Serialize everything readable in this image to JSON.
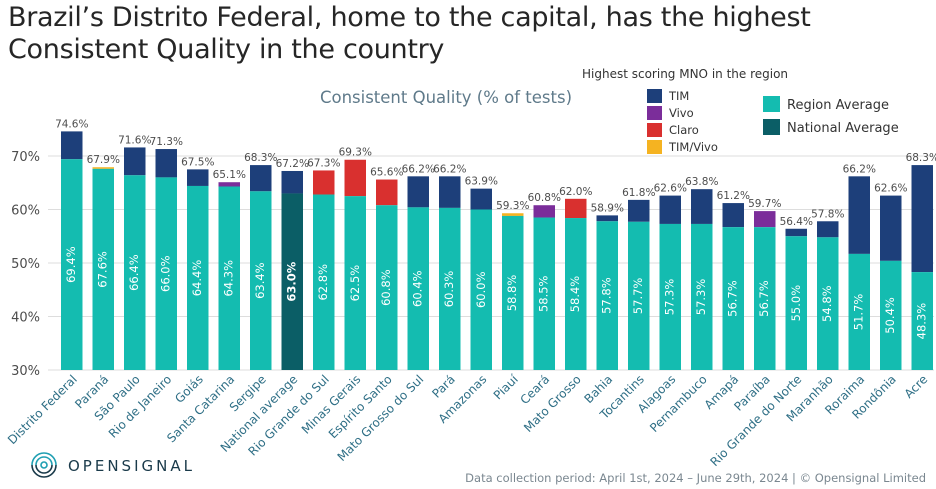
{
  "title_lines": [
    "Brazil’s Distrito Federal, home to the capital, has the highest",
    "Consistent Quality in the country"
  ],
  "logo_text": "OPENSIGNAL",
  "footer": "Data collection period: April 1st, 2024 – June 29th, 2024 | © Opensignal Limited",
  "colors": {
    "region_average": "#14bcb0",
    "national_average": "#0b5e66",
    "TIM": "#1d3f7a",
    "Vivo": "#7b2d9a",
    "Claro": "#d9302f",
    "TIM/Vivo": "#f5b321",
    "axis_text": "#4d4d4d",
    "bar_label": "#ffffff",
    "grid": "#dddddd"
  },
  "chart_data": {
    "type": "bar",
    "title": "Consistent Quality (% of tests)",
    "ylim": [
      30,
      76
    ],
    "yticks": [
      30,
      40,
      50,
      60,
      70
    ],
    "ytick_labels": [
      "30%",
      "40%",
      "50%",
      "60%",
      "70%"
    ],
    "legend_title": "Highest scoring MNO in the region",
    "legend_mno": [
      "TIM",
      "Vivo",
      "Claro",
      "TIM/Vivo"
    ],
    "legend_base": [
      "Region Average",
      "National Average"
    ],
    "categories": [
      "Distrito Federal",
      "Paraná",
      "São Paulo",
      "Rio de Janeiro",
      "Goiás",
      "Santa Catarina",
      "Sergipe",
      "National average",
      "Rio Grande do Sul",
      "Minas Gerais",
      "Espírito Santo",
      "Mato Grosso do Sul",
      "Pará",
      "Amazonas",
      "Piauí",
      "Ceará",
      "Mato Grosso",
      "Bahia",
      "Tocantins",
      "Alagoas",
      "Pernambuco",
      "Amapá",
      "Paraíba",
      "Rio Grande do Norte",
      "Maranhão",
      "Roraima",
      "Rondônia",
      "Acre"
    ],
    "series": [
      {
        "name": "Region Average",
        "values": [
          69.4,
          67.6,
          66.4,
          66.0,
          64.4,
          64.3,
          63.4,
          63.0,
          62.8,
          62.5,
          60.8,
          60.4,
          60.3,
          60.0,
          58.8,
          58.5,
          58.4,
          57.8,
          57.7,
          57.3,
          57.3,
          56.7,
          56.7,
          55.0,
          54.8,
          51.7,
          50.4,
          48.3
        ]
      },
      {
        "name": "Highest scoring MNO",
        "values": [
          74.6,
          67.9,
          71.6,
          71.3,
          67.5,
          65.1,
          68.3,
          67.2,
          67.3,
          69.3,
          65.6,
          66.2,
          66.2,
          63.9,
          59.3,
          60.8,
          62.0,
          58.9,
          61.8,
          62.6,
          63.8,
          61.2,
          59.7,
          56.4,
          57.8,
          66.2,
          62.6,
          68.3
        ]
      }
    ],
    "top_mno": [
      "TIM",
      "TIM/Vivo",
      "TIM",
      "TIM",
      "TIM",
      "Vivo",
      "TIM",
      "TIM",
      "Claro",
      "Claro",
      "Claro",
      "TIM",
      "TIM",
      "TIM",
      "TIM/Vivo",
      "Vivo",
      "Claro",
      "TIM",
      "TIM",
      "TIM",
      "TIM",
      "TIM",
      "Vivo",
      "TIM",
      "TIM",
      "TIM",
      "TIM",
      "TIM"
    ],
    "average_labels": [
      "69.4%",
      "67.6%",
      "66.4%",
      "66.0%",
      "64.4%",
      "64.3%",
      "63.4%",
      "63.0%",
      "62.8%",
      "62.5%",
      "60.8%",
      "60.4%",
      "60.3%",
      "60.0%",
      "58.8%",
      "58.5%",
      "58.4%",
      "57.8%",
      "57.7%",
      "57.3%",
      "57.3%",
      "56.7%",
      "56.7%",
      "55.0%",
      "54.8%",
      "51.7%",
      "50.4%",
      "48.3%"
    ],
    "top_labels": [
      "74.6%",
      "67.9%",
      "71.6%",
      "71.3%",
      "67.5%",
      "65.1%",
      "68.3%",
      "67.2%",
      "67.3%",
      "69.3%",
      "65.6%",
      "66.2%",
      "66.2%",
      "63.9%",
      "59.3%",
      "60.8%",
      "62.0%",
      "58.9%",
      "61.8%",
      "62.6%",
      "63.8%",
      "61.2%",
      "59.7%",
      "56.4%",
      "57.8%",
      "66.2%",
      "62.6%",
      "68.3%"
    ],
    "highlight_category": "National average"
  }
}
